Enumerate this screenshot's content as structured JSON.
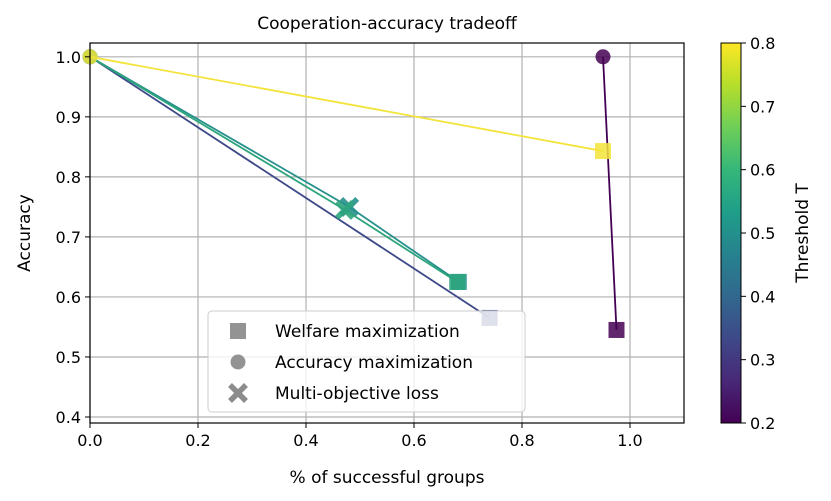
{
  "chart_data": {
    "type": "line",
    "title": "Cooperation-accuracy tradeoff",
    "xlabel": "% of successful groups",
    "ylabel": "Accuracy",
    "xlim": [
      0.0,
      1.1
    ],
    "ylim": [
      0.39,
      1.023
    ],
    "xticks": [
      0.0,
      0.2,
      0.4,
      0.6,
      0.8,
      1.0
    ],
    "xtick_labels": [
      "0.0",
      "0.2",
      "0.4",
      "0.6",
      "0.8",
      "1.0"
    ],
    "yticks": [
      0.4,
      0.5,
      0.6,
      0.7,
      0.8,
      0.9,
      1.0
    ],
    "ytick_labels": [
      "0.4",
      "0.5",
      "0.6",
      "0.7",
      "0.8",
      "0.9",
      "1.0"
    ],
    "grid": true,
    "legend_position": "lower-center",
    "legend": [
      {
        "marker": "square",
        "label": "Welfare maximization"
      },
      {
        "marker": "circle",
        "label": "Accuracy maximization"
      },
      {
        "marker": "x",
        "label": "Multi-objective loss"
      }
    ],
    "colorbar": {
      "label": "Threshold T",
      "range": [
        0.2,
        0.8
      ],
      "ticks": [
        0.2,
        0.3,
        0.4,
        0.5,
        0.6,
        0.7,
        0.8
      ],
      "tick_labels": [
        "0.2",
        "0.3",
        "0.4",
        "0.5",
        "0.6",
        "0.7",
        "0.8"
      ],
      "colormap": "viridis",
      "stops": [
        "#440154",
        "#482878",
        "#3e4989",
        "#31688e",
        "#26828e",
        "#1f9e89",
        "#35b779",
        "#6ece58",
        "#b5de2b",
        "#fde725"
      ]
    },
    "series": [
      {
        "threshold": 0.2,
        "color": "#440154",
        "points": [
          {
            "x": 0.95,
            "y": 1.0,
            "marker": "circle"
          },
          {
            "x": 0.975,
            "y": 0.545,
            "marker": "square"
          }
        ]
      },
      {
        "threshold": 0.3,
        "color": "#3e4989",
        "points": [
          {
            "x": 0.0,
            "y": 1.0,
            "marker": "circle"
          },
          {
            "x": 0.74,
            "y": 0.565,
            "marker": "square"
          }
        ]
      },
      {
        "threshold": 0.5,
        "color": "#26908c",
        "points": [
          {
            "x": 0.0,
            "y": 1.0,
            "marker": "circle"
          },
          {
            "x": 0.48,
            "y": 0.75,
            "marker": "x"
          },
          {
            "x": 0.683,
            "y": 0.625,
            "marker": "square"
          }
        ]
      },
      {
        "threshold": 0.55,
        "color": "#2ca47c",
        "points": [
          {
            "x": 0.0,
            "y": 1.0,
            "marker": "circle"
          },
          {
            "x": 0.472,
            "y": 0.745,
            "marker": "x"
          },
          {
            "x": 0.68,
            "y": 0.625,
            "marker": "square"
          }
        ]
      },
      {
        "threshold": 0.8,
        "color": "#f3e43a",
        "points": [
          {
            "x": 0.0,
            "y": 1.0,
            "marker": "circle"
          },
          {
            "x": 0.95,
            "y": 0.843,
            "marker": "square"
          }
        ]
      }
    ]
  }
}
